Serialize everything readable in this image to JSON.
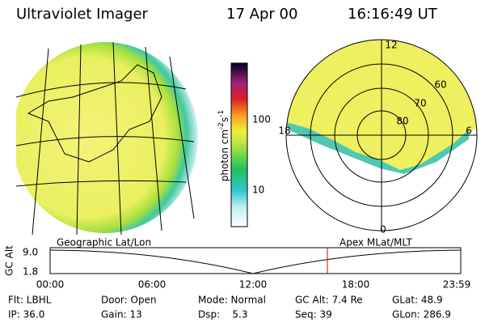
{
  "header": {
    "title": "Ultraviolet Imager",
    "date": "17 Apr 00",
    "time": "16:16:49 UT"
  },
  "colorbar": {
    "ticks": [
      "100",
      "10"
    ],
    "unit": {
      "base": "photon cm",
      "exp1": "-2",
      "mid": "s",
      "exp2": "-1"
    }
  },
  "polar": {
    "mlt_labels": [
      "12",
      "18",
      "6",
      "0"
    ],
    "lat_labels": [
      "60",
      "70",
      "80"
    ]
  },
  "timeline": {
    "left_title": "Geographic Lat/Lon",
    "right_title": "Apex MLat/MLT",
    "axis_label": "GC Alt",
    "y_labels": [
      "9.0",
      "1.8"
    ],
    "times": [
      "00:00",
      "06:00",
      "12:00",
      "18:00",
      "23:59"
    ]
  },
  "info": {
    "rows": [
      [
        "Flt: LBHL",
        "Door: Open",
        "Mode: Normal",
        "GC Alt: 7.4 Re",
        "GLat: 48.9"
      ],
      [
        "IP: 36.0",
        "Gain: 13",
        "Dsp:    5.3",
        "Seq: 39",
        "GLon: 286.9"
      ]
    ]
  }
}
